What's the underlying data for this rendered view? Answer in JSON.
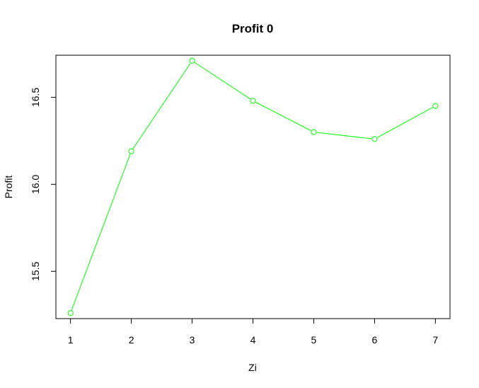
{
  "chart_data": {
    "type": "line",
    "title": "Profit 0",
    "xlabel": "Zi",
    "ylabel": "Profit",
    "x": [
      1,
      2,
      3,
      4,
      5,
      6,
      7
    ],
    "series": [
      {
        "values": [
          15.26,
          16.19,
          16.71,
          16.48,
          16.3,
          16.26,
          16.45
        ],
        "color": "#00ff00",
        "marker": "open-circle"
      }
    ],
    "xticks": [
      "1",
      "2",
      "3",
      "4",
      "5",
      "6",
      "7"
    ],
    "yticks": [
      "15.5",
      "16.0",
      "16.5"
    ],
    "xlim": [
      0.76,
      7.24
    ],
    "ylim": [
      15.2284,
      16.7416
    ],
    "grid": false,
    "legend": "none"
  }
}
